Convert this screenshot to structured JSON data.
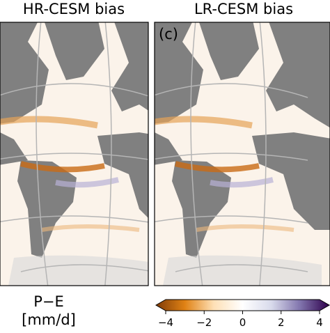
{
  "panels": [
    {
      "title": "HR-CESM bias"
    },
    {
      "title": "LR-CESM bias",
      "label": "(c)"
    }
  ],
  "colorbar": {
    "label_lines": [
      "P−E",
      "[mm/d]"
    ],
    "colormap": [
      "#7f3b08",
      "#e08214",
      "#fee0b6",
      "#ffffff",
      "#d8daeb",
      "#8073ac",
      "#2d004b"
    ],
    "xlim": [
      -4,
      4
    ],
    "xticks": [
      {
        "value": -4,
        "label": "−4"
      },
      {
        "value": -2,
        "label": "−2"
      },
      0,
      2,
      4
    ]
  }
}
